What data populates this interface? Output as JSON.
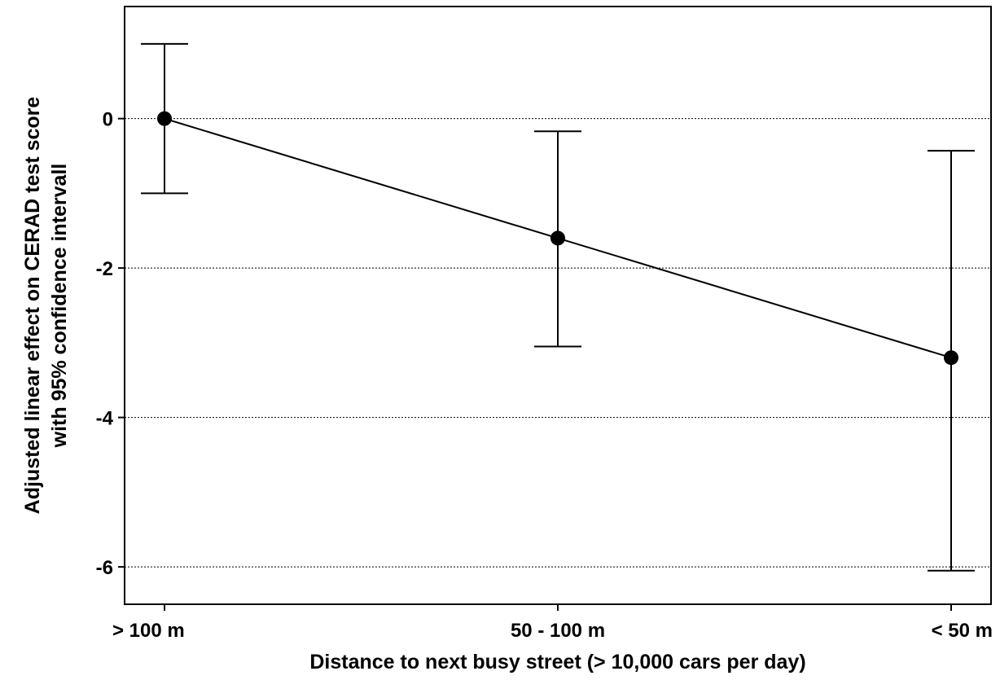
{
  "chart_data": {
    "type": "line",
    "title": "",
    "xlabel": "Distance to next busy street (> 10,000 cars per day)",
    "ylabel_lines": [
      "Adjusted linear effect on CERAD test score",
      "with 95% confidence intervall"
    ],
    "categories": [
      "> 100 m",
      "50 - 100 m",
      "< 50 m"
    ],
    "series": [
      {
        "values": [
          0,
          -1.6,
          -3.2
        ],
        "ci_lower": [
          -1.0,
          -3.05,
          -6.05
        ],
        "ci_upper": [
          1.0,
          -0.17,
          -0.43
        ]
      }
    ],
    "ylim": [
      -6.5,
      1.5
    ],
    "yticks": [
      0,
      -2,
      -4,
      -6
    ],
    "ytick_labels": [
      "0",
      "-2",
      "-4",
      "-6"
    ],
    "grid": "horizontal-dotted",
    "legend": "none",
    "colors": {
      "line": "#000000",
      "marker": "#000000",
      "grid": "#000000",
      "frame": "#000000"
    }
  }
}
